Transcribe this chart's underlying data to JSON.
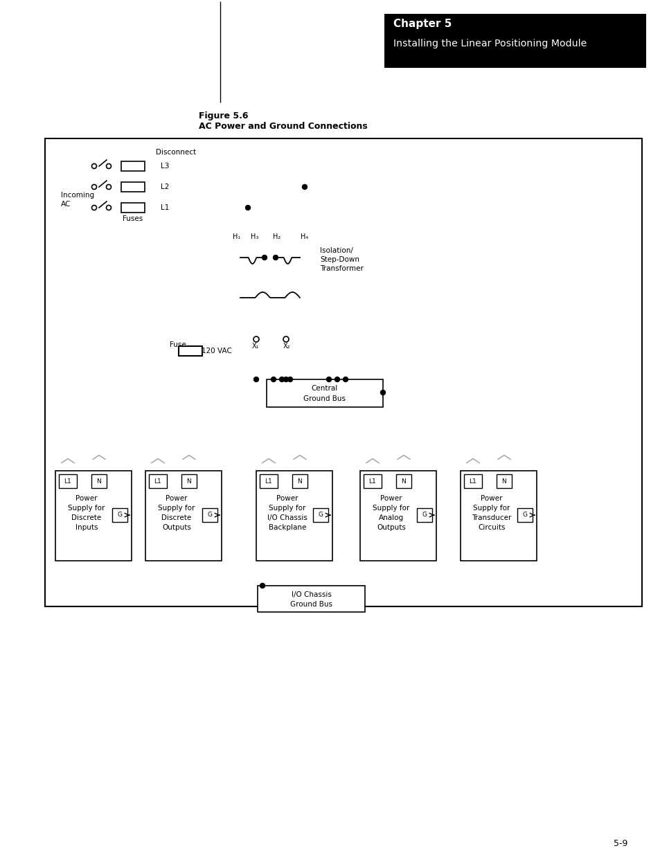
{
  "chapter_line1": "Chapter 5",
  "chapter_line2": "Installing the Linear Positioning Module",
  "fig_title1": "Figure 5.6",
  "fig_title2": "AC Power and Ground Connections",
  "page_num": "5-9",
  "ps_labels": [
    [
      "Power",
      "Supply for",
      "Discrete",
      "Inputs"
    ],
    [
      "Power",
      "Supply for",
      "Discrete",
      "Outputs"
    ],
    [
      "Power",
      "Supply for",
      "I/O Chassis",
      "Backplane"
    ],
    [
      "Power",
      "Supply for",
      "Analog",
      "Outputs"
    ],
    [
      "Power",
      "Supply for",
      "Transducer",
      "Circuits"
    ]
  ]
}
